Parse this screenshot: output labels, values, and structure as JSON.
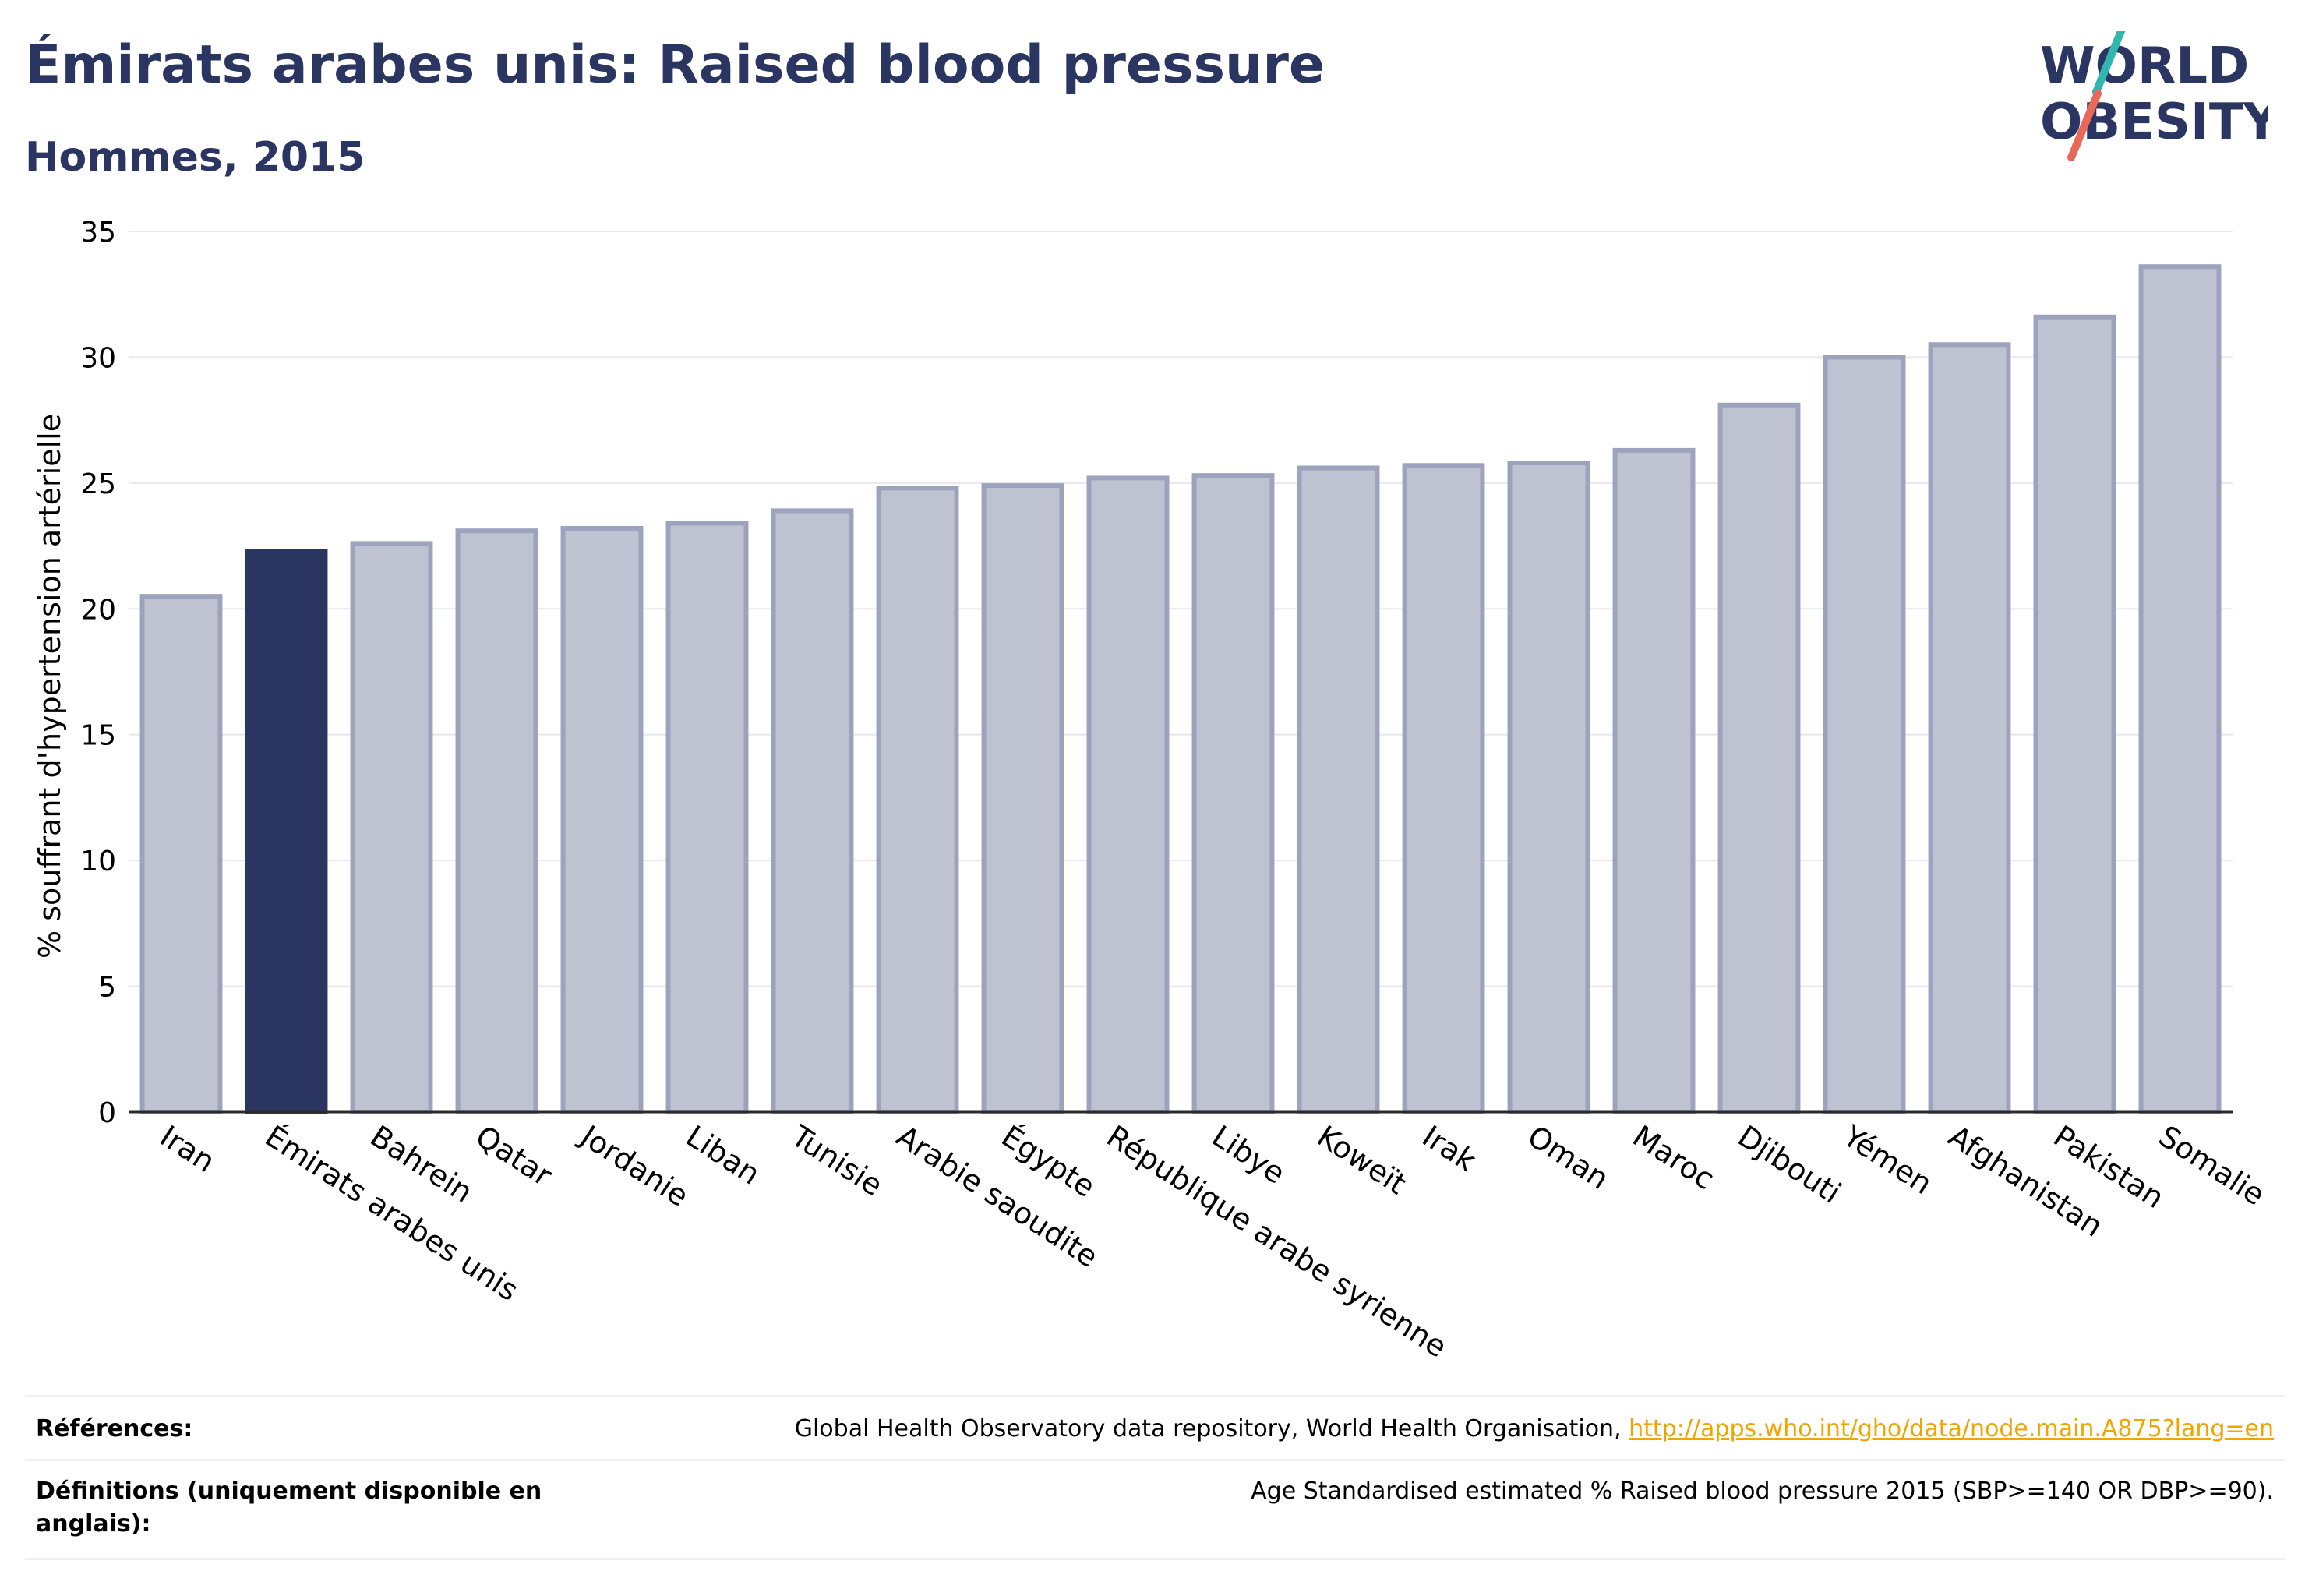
{
  "header": {
    "title": "Émirats arabes unis: Raised blood pressure",
    "subtitle": "Hommes, 2015"
  },
  "logo": {
    "line1": "WORLD",
    "line2": "OBESITY",
    "accent_colors": [
      "#2fb7b0",
      "#e8685a"
    ]
  },
  "chart_data": {
    "type": "bar",
    "categories": [
      "Iran",
      "Émirats arabes unis",
      "Bahrein",
      "Qatar",
      "Jordanie",
      "Liban",
      "Tunisie",
      "Arabie saoudite",
      "Égypte",
      "République arabe syrienne",
      "Libye",
      "Koweït",
      "Irak",
      "Oman",
      "Maroc",
      "Djibouti",
      "Yémen",
      "Afghanistan",
      "Pakistan",
      "Somalie"
    ],
    "values": [
      20.5,
      22.3,
      22.6,
      23.1,
      23.2,
      23.4,
      23.9,
      24.8,
      24.9,
      25.2,
      25.3,
      25.6,
      25.7,
      25.8,
      26.3,
      28.1,
      30.0,
      30.5,
      31.6,
      33.6
    ],
    "highlight": "Émirats arabes unis",
    "ylabel": "% souffrant d'hypertension artérielle",
    "xlabel": "",
    "ylim": [
      0,
      35
    ],
    "yticks": [
      0,
      5,
      10,
      15,
      20,
      25,
      30,
      35
    ],
    "grid": true,
    "colors": {
      "bar": "#bfc3d1",
      "bar_edge": "#9ea3bd",
      "highlight": "#2b3561"
    }
  },
  "footer": {
    "references_label": "Références:",
    "references_text": "Global Health Observatory data repository, World Health Organisation, ",
    "references_link": "http://apps.who.int/gho/data/node.main.A875?lang=en",
    "definitions_label": "Définitions (uniquement disponible en anglais):",
    "definitions_text": "Age Standardised estimated % Raised blood pressure 2015 (SBP>=140 OR DBP>=90)."
  }
}
